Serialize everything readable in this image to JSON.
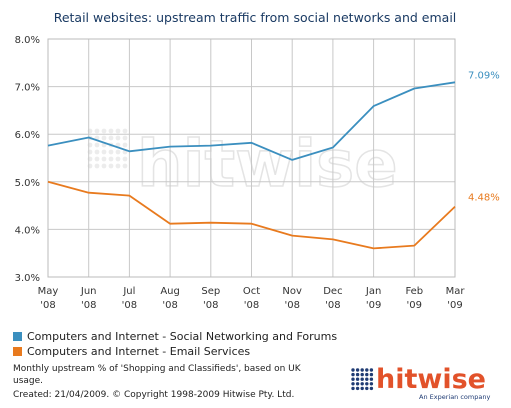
{
  "chart_data": {
    "type": "line",
    "title": "Retail websites: upstream traffic from social networks and email",
    "categories": [
      [
        "May",
        "'08"
      ],
      [
        "Jun",
        "'08"
      ],
      [
        "Jul",
        "'08"
      ],
      [
        "Aug",
        "'08"
      ],
      [
        "Sep",
        "'08"
      ],
      [
        "Oct",
        "'08"
      ],
      [
        "Nov",
        "'08"
      ],
      [
        "Dec",
        "'08"
      ],
      [
        "Jan",
        "'09"
      ],
      [
        "Feb",
        "'09"
      ],
      [
        "Mar",
        "'09"
      ]
    ],
    "ylim": [
      3.0,
      8.0
    ],
    "yticks": [
      "3.0%",
      "4.0%",
      "5.0%",
      "6.0%",
      "7.0%",
      "8.0%"
    ],
    "grid": true,
    "series": [
      {
        "name": "Computers and Internet - Social Networking and Forums",
        "color": "#3b8fbf",
        "values": [
          5.76,
          5.93,
          5.64,
          5.74,
          5.76,
          5.82,
          5.46,
          5.72,
          6.59,
          6.96,
          7.09
        ],
        "end_label": "7.09%"
      },
      {
        "name": "Computers and Internet - Email Services",
        "color": "#e87a1e",
        "values": [
          5.0,
          4.77,
          4.71,
          4.12,
          4.14,
          4.12,
          3.87,
          3.79,
          3.6,
          3.66,
          4.48
        ],
        "end_label": "4.48%"
      }
    ],
    "watermark": "hitwise"
  },
  "footer": {
    "line1": "Monthly upstream % of 'Shopping and Classifieds', based on UK",
    "line2": "usage.",
    "line3": "Created: 21/04/2009. © Copyright 1998-2009 Hitwise Pty. Ltd."
  },
  "logo": {
    "name": "hitwise",
    "tagline": "An Experian company",
    "colors": {
      "name": "#e2522a",
      "dots": "#1f3b73"
    }
  }
}
